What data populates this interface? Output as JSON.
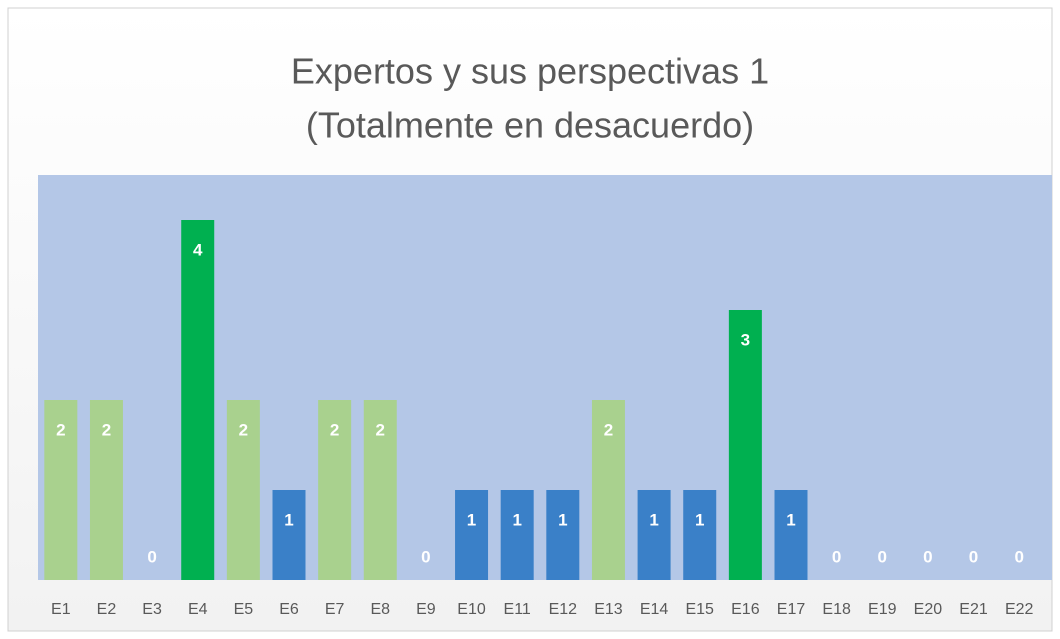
{
  "chart_data": {
    "type": "bar",
    "title": [
      "Expertos y sus perspectivas 1",
      "(Totalmente en desacuerdo)"
    ],
    "categories": [
      "E1",
      "E2",
      "E3",
      "E4",
      "E5",
      "E6",
      "E7",
      "E8",
      "E9",
      "E10",
      "E11",
      "E12",
      "E13",
      "E14",
      "E15",
      "E16",
      "E17",
      "E18",
      "E19",
      "E20",
      "E21",
      "E22"
    ],
    "values": [
      2,
      2,
      0,
      4,
      2,
      1,
      2,
      2,
      0,
      1,
      1,
      1,
      2,
      1,
      1,
      3,
      1,
      0,
      0,
      0,
      0,
      0
    ],
    "colors": [
      "#a9d18e",
      "#a9d18e",
      "#a9d18e",
      "#00b050",
      "#a9d18e",
      "#3a80c8",
      "#a9d18e",
      "#a9d18e",
      "#a9d18e",
      "#3a80c8",
      "#3a80c8",
      "#3a80c8",
      "#a9d18e",
      "#3a80c8",
      "#3a80c8",
      "#00b050",
      "#3a80c8",
      "#a9d18e",
      "#a9d18e",
      "#a9d18e",
      "#a9d18e",
      "#a9d18e"
    ],
    "plot_background": "#b4c7e7",
    "ylim": [
      0,
      4.5
    ]
  }
}
